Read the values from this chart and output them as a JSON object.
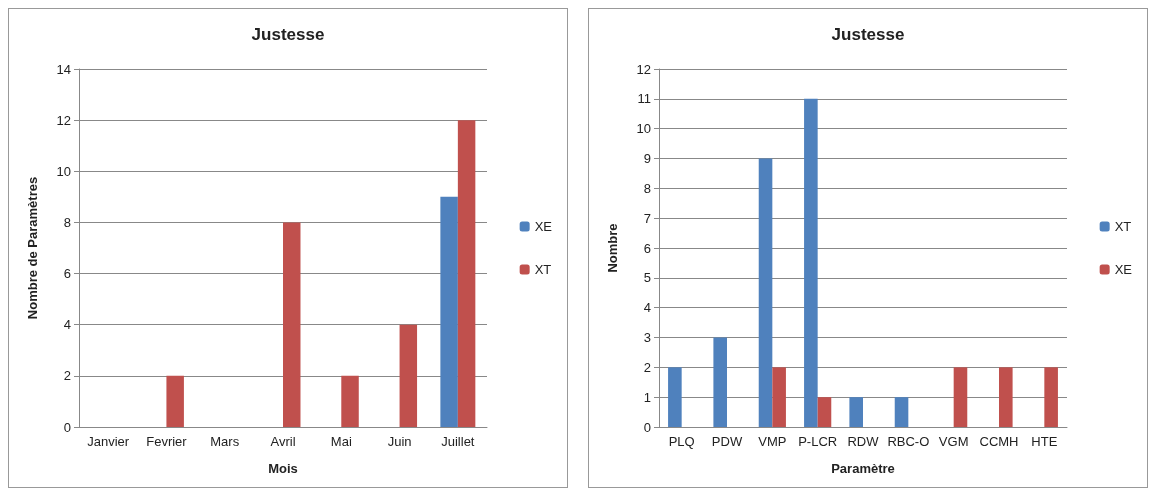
{
  "chart_data": [
    {
      "type": "bar",
      "title": "Justesse",
      "xlabel": "Mois",
      "ylabel": "Nombre de Paramètres",
      "categories": [
        "Janvier",
        "Fevrier",
        "Mars",
        "Avril",
        "Mai",
        "Juin",
        "Juillet"
      ],
      "series": [
        {
          "name": "XE",
          "color": "#4f81bd",
          "values": [
            0,
            0,
            0,
            0,
            0,
            0,
            9
          ]
        },
        {
          "name": "XT",
          "color": "#c0504d",
          "values": [
            0,
            2,
            0,
            8,
            2,
            4,
            12
          ]
        }
      ],
      "ylim": [
        0,
        14
      ],
      "yticks": [
        0,
        2,
        4,
        6,
        8,
        10,
        12,
        14
      ],
      "grid": "y",
      "legend": "right"
    },
    {
      "type": "bar",
      "title": "Justesse",
      "xlabel": "Paramètre",
      "ylabel": "Nombre",
      "categories": [
        "PLQ",
        "PDW",
        "VMP",
        "P-LCR",
        "RDW",
        "RBC-O",
        "VGM",
        "CCMH",
        "HTE"
      ],
      "series": [
        {
          "name": "XT",
          "color": "#4f81bd",
          "values": [
            2,
            3,
            9,
            11,
            1,
            1,
            0,
            0,
            0
          ]
        },
        {
          "name": "XE",
          "color": "#c0504d",
          "values": [
            0,
            0,
            2,
            1,
            0,
            0,
            2,
            2,
            2
          ]
        }
      ],
      "ylim": [
        0,
        12
      ],
      "yticks": [
        0,
        1,
        2,
        3,
        4,
        5,
        6,
        7,
        8,
        9,
        10,
        11,
        12
      ],
      "grid": "y",
      "legend": "right"
    }
  ]
}
